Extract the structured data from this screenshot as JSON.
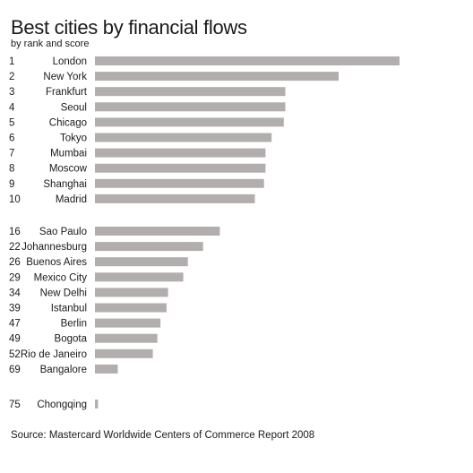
{
  "chart_data": {
    "type": "bar",
    "orientation": "horizontal",
    "title": "Best cities by financial flows",
    "subtitle": "by rank and score",
    "source": "Source: Mastercard Worldwide Centers of Commerce Report 2008",
    "bar_color": "#b2aeae",
    "categories": [
      "London",
      "New York",
      "Frankfurt",
      "Seoul",
      "Chicago",
      "Tokyo",
      "Mumbai",
      "Moscow",
      "Shanghai",
      "Madrid",
      "Sao Paulo",
      "Johannesburg",
      "Buenos Aires",
      "Mexico City",
      "New Delhi",
      "Istanbul",
      "Berlin",
      "Bogota",
      "Rio de Janeiro",
      "Bangalore",
      "Chongqing"
    ],
    "ranks": [
      "1",
      "2",
      "3",
      "4",
      "5",
      "6",
      "7",
      "8",
      "9",
      "10",
      "16",
      "22",
      "26",
      "29",
      "34",
      "39",
      "47",
      "49",
      "52",
      "69",
      "75"
    ],
    "values": [
      100,
      80,
      62.5,
      62.5,
      62,
      58,
      56,
      56,
      55.5,
      52.5,
      41,
      35.5,
      30.5,
      29,
      24,
      23.5,
      21.5,
      20.5,
      19,
      7.5,
      1
    ],
    "groups": [
      [
        0,
        9
      ],
      [
        10,
        19
      ],
      [
        20,
        20
      ]
    ],
    "xlim": [
      0,
      100
    ]
  }
}
